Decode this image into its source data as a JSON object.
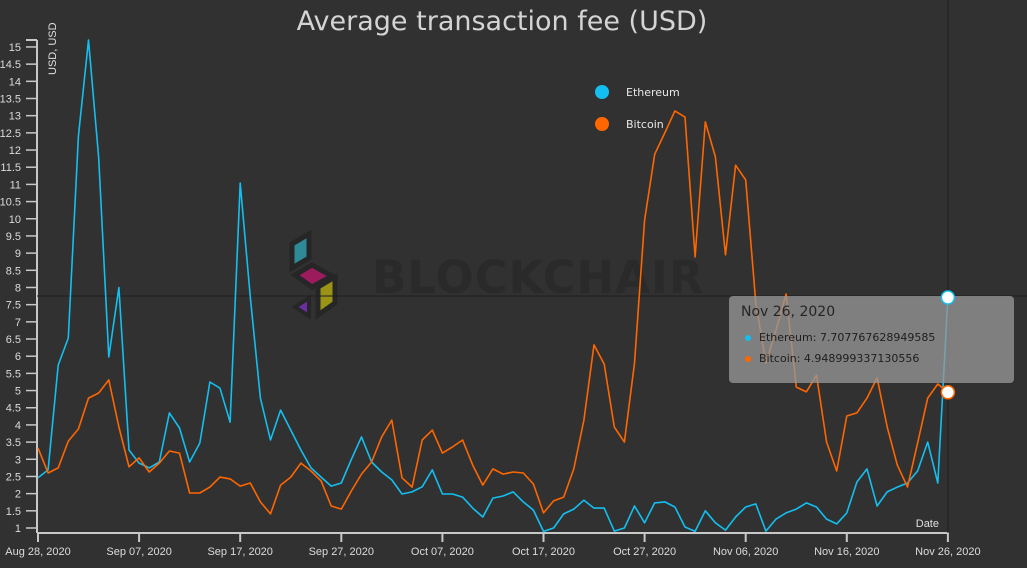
{
  "chart_data": {
    "type": "line",
    "title": "Average transaction fee (USD)",
    "xlabel": "Date",
    "ylabel": "USD, USD",
    "x_start": "2020-08-28",
    "x_end": "2020-11-26",
    "x_step": "1 day",
    "x_tick_labels": [
      "Aug 28, 2020",
      "Sep 07, 2020",
      "Sep 17, 2020",
      "Sep 27, 2020",
      "Oct 07, 2020",
      "Oct 17, 2020",
      "Oct 27, 2020",
      "Nov 06, 2020",
      "Nov 16, 2020",
      "Nov 26, 2020"
    ],
    "y_tick_labels": [
      "1",
      "1.5",
      "2",
      "2.5",
      "3",
      "3.5",
      "4",
      "4.5",
      "5",
      "5.5",
      "6",
      "6.5",
      "7",
      "7.5",
      "8",
      "8.5",
      "9",
      "9.5",
      "10",
      "10.5",
      "11",
      "11.5",
      "12",
      "12.5",
      "13",
      "13.5",
      "14",
      "14.5",
      "15"
    ],
    "ylim": [
      1,
      15.3
    ],
    "grid": false,
    "legend_placement": "top-center-right",
    "series": [
      {
        "name": "Ethereum",
        "color": "#13bff0",
        "values": [
          2.46,
          2.69,
          5.74,
          6.53,
          12.4,
          15.2,
          11.77,
          5.98,
          8.0,
          3.27,
          2.89,
          2.75,
          2.92,
          4.35,
          3.91,
          2.92,
          3.47,
          5.25,
          5.07,
          4.08,
          11.04,
          7.72,
          4.78,
          3.56,
          4.43,
          3.85,
          3.27,
          2.75,
          2.48,
          2.22,
          2.31,
          3.0,
          3.65,
          2.92,
          2.63,
          2.4,
          1.99,
          2.05,
          2.2,
          2.69,
          1.99,
          1.99,
          1.9,
          1.58,
          1.32,
          1.87,
          1.93,
          2.05,
          1.76,
          1.52,
          0.9,
          1.0,
          1.41,
          1.55,
          1.81,
          1.58,
          1.58,
          0.91,
          1.0,
          1.64,
          1.15,
          1.73,
          1.76,
          1.61,
          1.03,
          0.9,
          1.5,
          1.15,
          0.94,
          1.32,
          1.61,
          1.7,
          0.91,
          1.26,
          1.44,
          1.55,
          1.73,
          1.61,
          1.26,
          1.12,
          1.44,
          2.34,
          2.72,
          1.64,
          2.05,
          2.19,
          2.31,
          2.66,
          3.5,
          2.31,
          7.707767628949585
        ]
      },
      {
        "name": "Bitcoin",
        "color": "#ff6600",
        "values": [
          3.33,
          2.6,
          2.75,
          3.53,
          3.88,
          4.78,
          4.93,
          5.31,
          3.94,
          2.78,
          3.04,
          2.63,
          2.89,
          3.24,
          3.18,
          2.02,
          2.02,
          2.19,
          2.48,
          2.43,
          2.22,
          2.31,
          1.76,
          1.41,
          2.25,
          2.48,
          2.89,
          2.66,
          2.37,
          1.64,
          1.55,
          2.08,
          2.57,
          2.92,
          3.65,
          4.14,
          2.46,
          2.19,
          3.56,
          3.85,
          3.18,
          3.36,
          3.56,
          2.83,
          2.25,
          2.72,
          2.57,
          2.63,
          2.6,
          2.28,
          1.44,
          1.79,
          1.9,
          2.72,
          4.14,
          6.33,
          5.77,
          3.94,
          3.5,
          5.8,
          9.96,
          11.88,
          12.5,
          13.14,
          12.96,
          8.89,
          12.82,
          11.8,
          8.95,
          11.56,
          11.13,
          7.55,
          5.8,
          6.76,
          7.81,
          5.1,
          4.96,
          5.45,
          3.5,
          2.66,
          4.26,
          4.35,
          4.78,
          5.37,
          3.94,
          2.83,
          2.19,
          3.47,
          4.78,
          5.19,
          4.948999337130556
        ]
      }
    ]
  },
  "tooltip": {
    "date": "Nov 26, 2020",
    "rows": [
      {
        "label": "Ethereum: 7.707767628949585",
        "color": "#13bff0"
      },
      {
        "label": "Bitcoin: 4.948999337130556",
        "color": "#ff6600"
      }
    ]
  },
  "watermark": {
    "text": "BLOCKCHAIR"
  },
  "colors": {
    "background": "#313131",
    "axis": "#c8c8c8",
    "crosshair": "#1e1e1e"
  }
}
